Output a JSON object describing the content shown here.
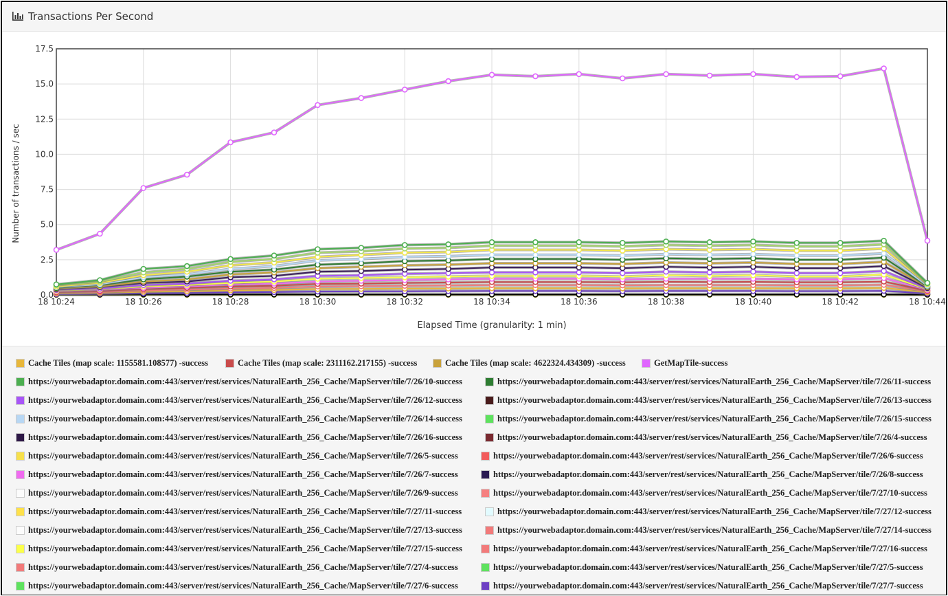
{
  "panel": {
    "title": "Transactions Per Second",
    "icon": "bar-chart-icon"
  },
  "chart_data": {
    "type": "line",
    "title": "",
    "xlabel": "Elapsed Time (granularity: 1 min)",
    "ylabel": "Number of transactions / sec",
    "ylim": [
      0,
      17.5
    ],
    "yticks": [
      "0.0",
      "2.5",
      "5.0",
      "7.5",
      "10.0",
      "12.5",
      "15.0",
      "17.5"
    ],
    "xticks": [
      "18 10:24",
      "18 10:26",
      "18 10:28",
      "18 10:30",
      "18 10:32",
      "18 10:34",
      "18 10:36",
      "18 10:38",
      "18 10:40",
      "18 10:42",
      "18 10:44"
    ],
    "x_minutes": [
      "10:24",
      "10:25",
      "10:26",
      "10:27",
      "10:28",
      "10:29",
      "10:30",
      "10:31",
      "10:32",
      "10:33",
      "10:34",
      "10:35",
      "10:36",
      "10:37",
      "10:38",
      "10:39",
      "10:40",
      "10:41",
      "10:42",
      "10:43",
      "10:44"
    ],
    "grid": true,
    "legend_position": "bottom",
    "series": [
      {
        "name": "GetMapTile-success",
        "color": "#e066ff",
        "values": [
          3.2,
          4.35,
          7.6,
          8.55,
          10.85,
          11.55,
          13.5,
          14.0,
          14.6,
          15.2,
          15.65,
          15.55,
          15.7,
          15.4,
          15.7,
          15.6,
          15.7,
          15.5,
          15.55,
          16.1,
          3.85
        ]
      },
      {
        "name": "https://yourwebadaptor.domain.com:443/server/rest/services/NaturalEarth_256_Cache/MapServer/tile/7/26/10-success",
        "color": "#4caf50",
        "values": [
          0.75,
          1.05,
          1.85,
          2.05,
          2.55,
          2.8,
          3.25,
          3.35,
          3.55,
          3.6,
          3.75,
          3.75,
          3.75,
          3.7,
          3.8,
          3.75,
          3.8,
          3.7,
          3.7,
          3.85,
          0.85
        ]
      },
      {
        "name": "https://yourwebadaptor.domain.com:443/server/rest/services/NaturalEarth_256_Cache/MapServer/tile/7/26/15-success",
        "color": "#a5d66b",
        "values": [
          0.7,
          0.95,
          1.6,
          1.85,
          2.35,
          2.55,
          3.0,
          3.1,
          3.3,
          3.35,
          3.5,
          3.5,
          3.5,
          3.45,
          3.55,
          3.5,
          3.55,
          3.45,
          3.45,
          3.6,
          0.8
        ]
      },
      {
        "name": "https://yourwebadaptor.domain.com:443/server/rest/services/NaturalEarth_256_Cache/MapServer/tile/7/26/5-success",
        "color": "#f3e64a",
        "values": [
          0.6,
          0.85,
          1.4,
          1.65,
          2.1,
          2.3,
          2.7,
          2.85,
          3.0,
          3.05,
          3.2,
          3.2,
          3.2,
          3.15,
          3.25,
          3.2,
          3.25,
          3.15,
          3.15,
          3.3,
          0.75
        ]
      },
      {
        "name": "https://yourwebadaptor.domain.com:443/server/rest/services/NaturalEarth_256_Cache/MapServer/tile/7/26/14-success",
        "color": "#b7d7f4",
        "values": [
          0.55,
          0.75,
          1.25,
          1.45,
          1.85,
          2.05,
          2.45,
          2.55,
          2.7,
          2.75,
          2.85,
          2.85,
          2.85,
          2.8,
          2.9,
          2.85,
          2.9,
          2.8,
          2.8,
          2.95,
          0.65
        ]
      },
      {
        "name": "https://yourwebadaptor.domain.com:443/server/rest/services/NaturalEarth_256_Cache/MapServer/tile/7/26/11-success",
        "color": "#2e7d32",
        "values": [
          0.5,
          0.7,
          1.1,
          1.3,
          1.65,
          1.8,
          2.15,
          2.25,
          2.4,
          2.45,
          2.55,
          2.55,
          2.55,
          2.5,
          2.6,
          2.55,
          2.6,
          2.5,
          2.5,
          2.65,
          0.6
        ]
      },
      {
        "name": "Cache Tiles (map scale: 4622324.434309) -success",
        "color": "#c9a23a",
        "values": [
          0.45,
          0.6,
          0.95,
          1.1,
          1.45,
          1.6,
          1.9,
          2.0,
          2.1,
          2.15,
          2.25,
          2.25,
          2.25,
          2.2,
          2.3,
          2.25,
          2.3,
          2.2,
          2.2,
          2.35,
          0.55
        ]
      },
      {
        "name": "https://yourwebadaptor.domain.com:443/server/rest/services/NaturalEarth_256_Cache/MapServer/tile/7/26/16-success",
        "color": "#3b1f5c",
        "values": [
          0.4,
          0.55,
          0.85,
          0.95,
          1.25,
          1.35,
          1.65,
          1.7,
          1.8,
          1.85,
          1.95,
          1.95,
          1.95,
          1.9,
          2.0,
          1.95,
          2.0,
          1.9,
          1.9,
          2.05,
          0.5
        ]
      },
      {
        "name": "https://yourwebadaptor.domain.com:443/server/rest/services/NaturalEarth_256_Cache/MapServer/tile/7/26/12-success",
        "color": "#a855f7",
        "values": [
          0.35,
          0.45,
          0.7,
          0.8,
          1.0,
          1.1,
          1.35,
          1.4,
          1.5,
          1.55,
          1.6,
          1.6,
          1.6,
          1.55,
          1.65,
          1.6,
          1.65,
          1.55,
          1.55,
          1.7,
          0.45
        ]
      },
      {
        "name": "https://yourwebadaptor.domain.com:443/server/rest/services/NaturalEarth_256_Cache/MapServer/tile/7/27/15-success",
        "color": "#fbff4a",
        "values": [
          0.3,
          0.4,
          0.6,
          0.7,
          0.85,
          0.95,
          1.15,
          1.2,
          1.25,
          1.3,
          1.35,
          1.35,
          1.35,
          1.3,
          1.4,
          1.35,
          1.4,
          1.3,
          1.3,
          1.45,
          0.4
        ]
      },
      {
        "name": "https://yourwebadaptor.domain.com:443/server/rest/services/NaturalEarth_256_Cache/MapServer/tile/7/26/7-success",
        "color": "#f06bf0",
        "values": [
          0.25,
          0.35,
          0.5,
          0.6,
          0.75,
          0.8,
          0.95,
          1.0,
          1.05,
          1.1,
          1.15,
          1.15,
          1.15,
          1.1,
          1.15,
          1.15,
          1.15,
          1.1,
          1.1,
          1.2,
          0.35
        ]
      },
      {
        "name": "Cache Tiles (map scale: 2311162.217155) -success",
        "color": "#c94b4b",
        "values": [
          0.2,
          0.28,
          0.42,
          0.5,
          0.6,
          0.65,
          0.78,
          0.8,
          0.85,
          0.88,
          0.92,
          0.92,
          0.92,
          0.9,
          0.93,
          0.92,
          0.93,
          0.9,
          0.9,
          0.95,
          0.3
        ]
      },
      {
        "name": "https://yourwebadaptor.domain.com:443/server/rest/services/NaturalEarth_256_Cache/MapServer/tile/7/27/4-success",
        "color": "#f27a7a",
        "values": [
          0.15,
          0.2,
          0.32,
          0.38,
          0.45,
          0.5,
          0.6,
          0.62,
          0.65,
          0.67,
          0.7,
          0.7,
          0.7,
          0.68,
          0.7,
          0.7,
          0.7,
          0.68,
          0.68,
          0.72,
          0.25
        ]
      },
      {
        "name": "Cache Tiles (map scale: 1155581.108577) -success",
        "color": "#e8b73a",
        "values": [
          0.1,
          0.14,
          0.22,
          0.26,
          0.32,
          0.35,
          0.42,
          0.43,
          0.45,
          0.46,
          0.48,
          0.48,
          0.48,
          0.47,
          0.48,
          0.48,
          0.48,
          0.47,
          0.47,
          0.5,
          0.18
        ]
      },
      {
        "name": "https://yourwebadaptor.domain.com:443/server/rest/services/NaturalEarth_256_Cache/MapServer/tile/7/27/7-success",
        "color": "#6d3fc4",
        "values": [
          0.05,
          0.08,
          0.12,
          0.14,
          0.18,
          0.2,
          0.24,
          0.25,
          0.26,
          0.27,
          0.28,
          0.28,
          0.28,
          0.27,
          0.28,
          0.28,
          0.28,
          0.27,
          0.27,
          0.29,
          0.1
        ]
      },
      {
        "name": "https://yourwebadaptor.domain.com:443/server/rest/services/NaturalEarth_256_Cache/MapServer/tile/7/26/13-success",
        "color": "#000000",
        "values": [
          0.02,
          0.02,
          0.03,
          0.03,
          0.03,
          0.03,
          0.03,
          0.03,
          0.03,
          0.03,
          0.03,
          0.03,
          0.03,
          0.03,
          0.03,
          0.03,
          0.03,
          0.03,
          0.03,
          0.03,
          0.02
        ]
      },
      {
        "name": "https://yourwebadaptor.domain.com:443/server/rest/services/NaturalEarth_256_Cache/MapServer/tile/7/27/12-success",
        "color": "#ffff66",
        "values": [
          0.0,
          0.0,
          0.0,
          0.0,
          0.0,
          0.0,
          0.0,
          0.0,
          0.0,
          0.0,
          0.0,
          0.0,
          0.0,
          0.0,
          0.0,
          0.0,
          0.0,
          0.0,
          0.0,
          0.0,
          0.0
        ]
      }
    ]
  },
  "legend": [
    {
      "label": "Cache Tiles (map scale: 1155581.108577) -success",
      "color": "#e8b73a"
    },
    {
      "label": "Cache Tiles (map scale: 2311162.217155) -success",
      "color": "#c94b4b"
    },
    {
      "label": "Cache Tiles (map scale: 4622324.434309) -success",
      "color": "#c9a23a"
    },
    {
      "label": "GetMapTile-success",
      "color": "#e066ff"
    },
    {
      "label": "https://yourwebadaptor.domain.com:443/server/rest/services/NaturalEarth_256_Cache/MapServer/tile/7/26/10-success",
      "color": "#4caf50"
    },
    {
      "label": "https://yourwebadaptor.domain.com:443/server/rest/services/NaturalEarth_256_Cache/MapServer/tile/7/26/11-success",
      "color": "#2e7d32"
    },
    {
      "label": "https://yourwebadaptor.domain.com:443/server/rest/services/NaturalEarth_256_Cache/MapServer/tile/7/26/12-success",
      "color": "#a855f7"
    },
    {
      "label": "https://yourwebadaptor.domain.com:443/server/rest/services/NaturalEarth_256_Cache/MapServer/tile/7/26/13-success",
      "color": "#4a1c1c"
    },
    {
      "label": "https://yourwebadaptor.domain.com:443/server/rest/services/NaturalEarth_256_Cache/MapServer/tile/7/26/14-success",
      "color": "#b7d7f4"
    },
    {
      "label": "https://yourwebadaptor.domain.com:443/server/rest/services/NaturalEarth_256_Cache/MapServer/tile/7/26/15-success",
      "color": "#5ee25e"
    },
    {
      "label": "https://yourwebadaptor.domain.com:443/server/rest/services/NaturalEarth_256_Cache/MapServer/tile/7/26/16-success",
      "color": "#2d1846"
    },
    {
      "label": "https://yourwebadaptor.domain.com:443/server/rest/services/NaturalEarth_256_Cache/MapServer/tile/7/26/4-success",
      "color": "#7a2a30"
    },
    {
      "label": "https://yourwebadaptor.domain.com:443/server/rest/services/NaturalEarth_256_Cache/MapServer/tile/7/26/5-success",
      "color": "#f7e04a"
    },
    {
      "label": "https://yourwebadaptor.domain.com:443/server/rest/services/NaturalEarth_256_Cache/MapServer/tile/7/26/6-success",
      "color": "#f25b5b"
    },
    {
      "label": "https://yourwebadaptor.domain.com:443/server/rest/services/NaturalEarth_256_Cache/MapServer/tile/7/26/7-success",
      "color": "#f06bf0"
    },
    {
      "label": "https://yourwebadaptor.domain.com:443/server/rest/services/NaturalEarth_256_Cache/MapServer/tile/7/26/8-success",
      "color": "#2a1a52"
    },
    {
      "label": "https://yourwebadaptor.domain.com:443/server/rest/services/NaturalEarth_256_Cache/MapServer/tile/7/26/9-success",
      "color": "#fcfcfc"
    },
    {
      "label": "https://yourwebadaptor.domain.com:443/server/rest/services/NaturalEarth_256_Cache/MapServer/tile/7/27/10-success",
      "color": "#f68080"
    },
    {
      "label": "https://yourwebadaptor.domain.com:443/server/rest/services/NaturalEarth_256_Cache/MapServer/tile/7/27/11-success",
      "color": "#ffe14a"
    },
    {
      "label": "https://yourwebadaptor.domain.com:443/server/rest/services/NaturalEarth_256_Cache/MapServer/tile/7/27/12-success",
      "color": "#e2fbff"
    },
    {
      "label": "https://yourwebadaptor.domain.com:443/server/rest/services/NaturalEarth_256_Cache/MapServer/tile/7/27/13-success",
      "color": "#fcfcfc"
    },
    {
      "label": "https://yourwebadaptor.domain.com:443/server/rest/services/NaturalEarth_256_Cache/MapServer/tile/7/27/14-success",
      "color": "#f27a7a"
    },
    {
      "label": "https://yourwebadaptor.domain.com:443/server/rest/services/NaturalEarth_256_Cache/MapServer/tile/7/27/15-success",
      "color": "#fbff4a"
    },
    {
      "label": "https://yourwebadaptor.domain.com:443/server/rest/services/NaturalEarth_256_Cache/MapServer/tile/7/27/16-success",
      "color": "#f27a7a"
    },
    {
      "label": "https://yourwebadaptor.domain.com:443/server/rest/services/NaturalEarth_256_Cache/MapServer/tile/7/27/4-success",
      "color": "#f27a7a"
    },
    {
      "label": "https://yourwebadaptor.domain.com:443/server/rest/services/NaturalEarth_256_Cache/MapServer/tile/7/27/5-success",
      "color": "#5ee25e"
    },
    {
      "label": "https://yourwebadaptor.domain.com:443/server/rest/services/NaturalEarth_256_Cache/MapServer/tile/7/27/6-success",
      "color": "#5ee25e"
    },
    {
      "label": "https://yourwebadaptor.domain.com:443/server/rest/services/NaturalEarth_256_Cache/MapServer/tile/7/27/7-success",
      "color": "#6d3fc4"
    }
  ]
}
